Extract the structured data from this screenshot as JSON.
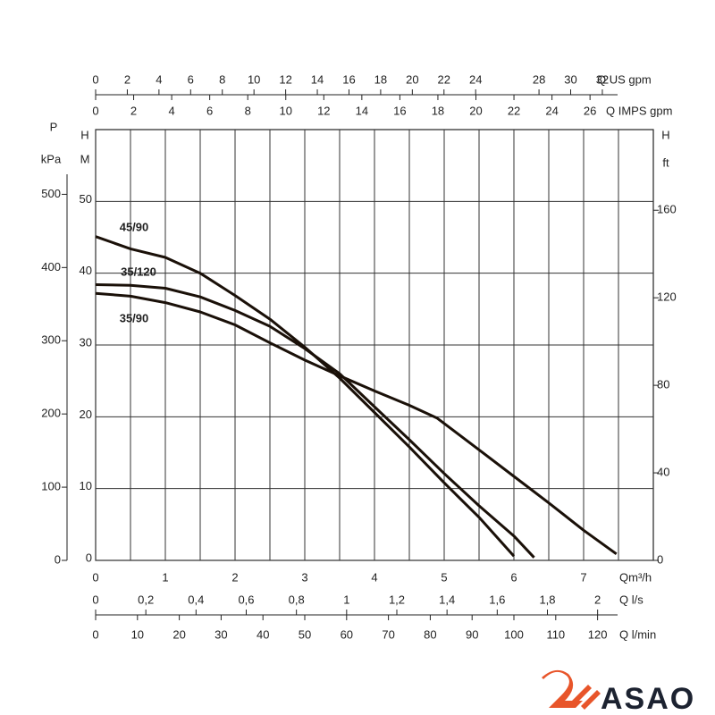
{
  "chart_data": {
    "type": "line",
    "xlabel": "Qm³/h",
    "ylabel": "H",
    "ylabel_unit": "M",
    "xlim": [
      0,
      8
    ],
    "ylim": [
      0,
      60
    ],
    "xticks": [
      0,
      1,
      2,
      3,
      4,
      5,
      6,
      7
    ],
    "xminorticks": [
      0.5,
      1.5,
      2.5,
      3.5,
      4.5,
      5.5,
      6.5,
      7.5
    ],
    "yticks": [
      0,
      10,
      20,
      30,
      40,
      50
    ],
    "grid": true,
    "series": [
      {
        "name": "45/90",
        "color": "#1a1008",
        "x": [
          0,
          0.5,
          1,
          1.5,
          2,
          2.5,
          3,
          3.5,
          4,
          4.5,
          5,
          5.5,
          6
        ],
        "values": [
          45.1,
          43.4,
          42.2,
          40,
          36.9,
          33.6,
          29.7,
          25.4,
          20.6,
          15.8,
          10.8,
          6,
          0.6
        ]
      },
      {
        "name": "35/120",
        "color": "#1a1008",
        "x": [
          0,
          0.5,
          1,
          1.5,
          2,
          2.5,
          3,
          3.5,
          4,
          4.5,
          5,
          5.5,
          6,
          6.29
        ],
        "values": [
          38.4,
          38.3,
          37.9,
          36.7,
          34.8,
          32.6,
          29.5,
          26,
          21.4,
          16.8,
          12.1,
          7.6,
          3.4,
          0.4
        ]
      },
      {
        "name": "35/90",
        "color": "#1a1008",
        "x": [
          0,
          0.5,
          1,
          1.5,
          2,
          2.5,
          3,
          3.5,
          4,
          4.5,
          4.9,
          5.5,
          6,
          6.5,
          7,
          7.47
        ],
        "values": [
          37.2,
          36.8,
          35.9,
          34.6,
          32.8,
          30.3,
          27.9,
          25.7,
          23.6,
          21.6,
          19.8,
          15.4,
          11.7,
          8,
          4.2,
          0.9
        ]
      }
    ],
    "axes": [
      {
        "position": "top-outer",
        "label": "Q US gpm",
        "lim": [
          0,
          35.22
        ],
        "ticks": [
          0,
          2,
          4,
          6,
          8,
          10,
          12,
          14,
          16,
          18,
          20,
          22,
          24,
          28,
          30,
          32
        ]
      },
      {
        "position": "top-inner",
        "label": "Q IMPS gpm",
        "lim": [
          0,
          29.33
        ],
        "ticks": [
          0,
          2,
          4,
          6,
          8,
          10,
          12,
          14,
          16,
          18,
          20,
          22,
          24,
          26
        ]
      },
      {
        "position": "bottom-inner",
        "label": "Q l/s",
        "lim": [
          0,
          2.222
        ],
        "ticks": [
          0,
          {
            "value": 0.2,
            "label": "0,2"
          },
          {
            "value": 0.4,
            "label": "0,4"
          },
          {
            "value": 0.6,
            "label": "0,6"
          },
          {
            "value": 0.8,
            "label": "0,8"
          },
          1,
          {
            "value": 1.2,
            "label": "1,2"
          },
          {
            "value": 1.4,
            "label": "1,4"
          },
          {
            "value": 1.6,
            "label": "1,6"
          },
          {
            "value": 1.8,
            "label": "1,8"
          },
          2
        ]
      },
      {
        "position": "bottom-outer",
        "label": "Q l/min",
        "lim": [
          0,
          133.33
        ],
        "ticks": [
          0,
          10,
          20,
          30,
          40,
          50,
          60,
          70,
          80,
          90,
          100,
          110,
          120
        ]
      },
      {
        "position": "left-outer",
        "label": "P",
        "unit": "kPa",
        "lim": [
          0,
          588.4
        ],
        "ticks": [
          0,
          100,
          200,
          300,
          400,
          500
        ]
      },
      {
        "position": "right",
        "label": "H",
        "unit": "ft",
        "lim": [
          0,
          196.85
        ],
        "ticks": [
          0,
          40,
          80,
          120,
          160
        ]
      }
    ]
  },
  "logo": {
    "text": "ASAO"
  }
}
